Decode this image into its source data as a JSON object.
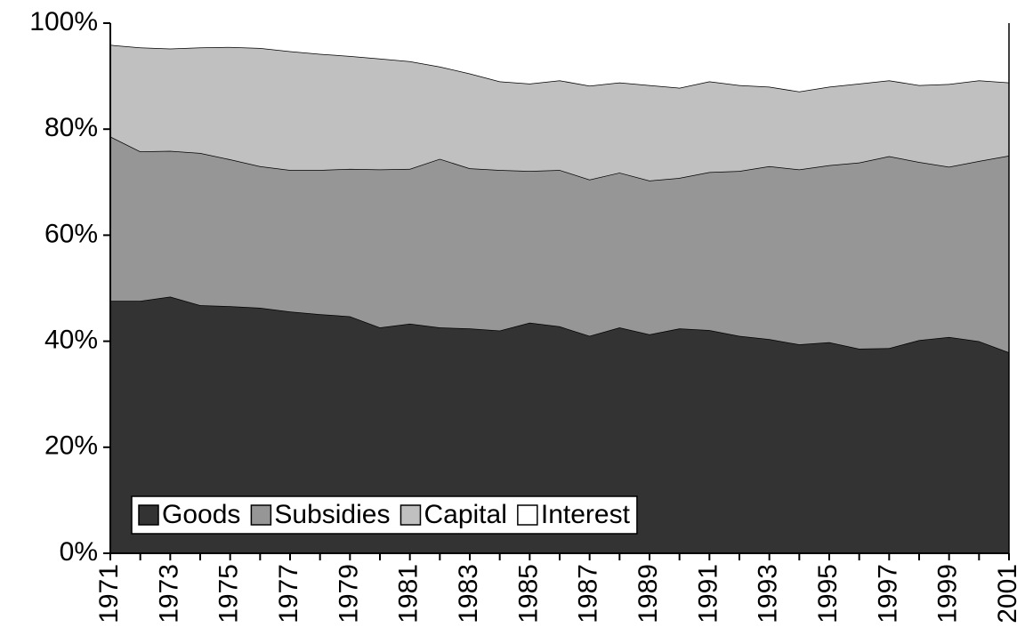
{
  "chart_data": {
    "type": "stacked_area",
    "x": [
      1971,
      1972,
      1973,
      1974,
      1975,
      1976,
      1977,
      1978,
      1979,
      1980,
      1981,
      1982,
      1983,
      1984,
      1985,
      1986,
      1987,
      1988,
      1989,
      1990,
      1991,
      1992,
      1993,
      1994,
      1995,
      1996,
      1997,
      1998,
      1999,
      2000,
      2001
    ],
    "xlim": [
      1971,
      2001
    ],
    "xticks": [
      1971,
      1973,
      1975,
      1977,
      1979,
      1981,
      1983,
      1985,
      1987,
      1989,
      1991,
      1993,
      1995,
      1997,
      1999,
      2001
    ],
    "ylim": [
      0,
      100
    ],
    "yticks": [
      {
        "value": 0,
        "label": "0%"
      },
      {
        "value": 20,
        "label": "20%"
      },
      {
        "value": 40,
        "label": "40%"
      },
      {
        "value": 60,
        "label": "60%"
      },
      {
        "value": 80,
        "label": "80%"
      },
      {
        "value": 100,
        "label": "100%"
      }
    ],
    "legend": "lower left",
    "series": [
      {
        "name": "Goods",
        "color": "#333333",
        "values": [
          47.6,
          47.6,
          48.4,
          46.8,
          46.6,
          46.3,
          45.6,
          45.1,
          44.7,
          42.6,
          43.3,
          42.6,
          42.4,
          42.0,
          43.5,
          42.8,
          41.0,
          42.6,
          41.3,
          42.4,
          42.1,
          41.0,
          40.4,
          39.4,
          39.8,
          38.6,
          38.7,
          40.2,
          40.8,
          40.0,
          37.9
        ]
      },
      {
        "name": "Subsidies",
        "color": "#969696",
        "values": [
          31.0,
          28.2,
          27.5,
          28.7,
          27.7,
          26.7,
          26.7,
          27.2,
          27.8,
          29.8,
          29.2,
          31.8,
          30.2,
          30.3,
          28.6,
          29.5,
          29.5,
          29.2,
          29.0,
          28.4,
          29.8,
          31.1,
          32.6,
          33.0,
          33.4,
          35.1,
          36.2,
          33.6,
          32.1,
          34.0,
          37.1
        ]
      },
      {
        "name": "Capital",
        "color": "#c0c0c0",
        "values": [
          17.3,
          19.6,
          19.3,
          19.9,
          21.2,
          22.3,
          22.4,
          21.9,
          21.3,
          20.9,
          20.3,
          17.4,
          17.9,
          16.7,
          16.5,
          16.9,
          17.7,
          17.0,
          18.0,
          17.0,
          17.1,
          16.2,
          15.0,
          14.7,
          14.8,
          14.9,
          14.3,
          14.5,
          15.6,
          15.2,
          13.8
        ]
      },
      {
        "name": "Interest",
        "color": "#ffffff",
        "values": [
          4.1,
          4.6,
          4.8,
          4.6,
          4.5,
          4.7,
          5.3,
          5.8,
          6.2,
          6.7,
          7.2,
          8.2,
          9.5,
          11.0,
          11.4,
          10.8,
          11.8,
          11.2,
          11.7,
          12.2,
          11.0,
          11.7,
          12.0,
          12.9,
          12.0,
          11.4,
          10.8,
          11.7,
          11.5,
          10.8,
          11.2
        ]
      }
    ]
  }
}
